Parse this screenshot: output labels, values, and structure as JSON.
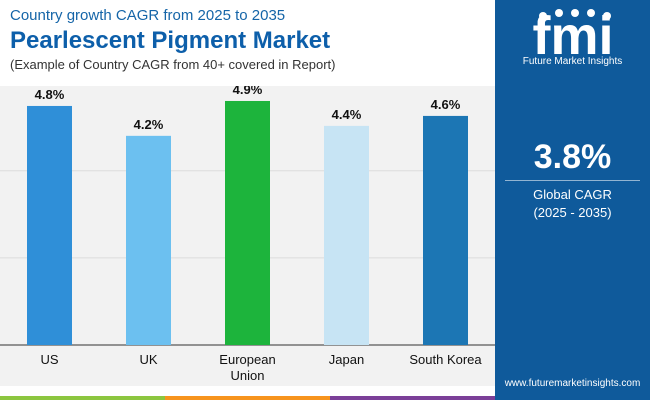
{
  "header": {
    "top_line": "Country growth CAGR from 2025 to 2035",
    "title": "Pearlescent Pigment Market",
    "note": "(Example of Country CAGR from 40+ covered in Report)"
  },
  "sidebar": {
    "logo_letters": "fmi",
    "logo_caption": "Future Market Insights",
    "cagr_value": "3.8%",
    "cagr_label": "Global CAGR",
    "cagr_period": "(2025 - 2035)",
    "website": "www.futuremarketinsights.com"
  },
  "colors": {
    "title_blue": "#0d5faa",
    "sidebar_blue": "#0f5a9b",
    "plot_background": "#f2f2f2",
    "bottom_strip": [
      "#8cc63f",
      "#f7941d",
      "#7b3f98"
    ]
  },
  "chart_data": {
    "type": "bar",
    "categories": [
      "US",
      "UK",
      "European Union",
      "Japan",
      "South Korea"
    ],
    "category_label_lines": [
      [
        "US"
      ],
      [
        "UK"
      ],
      [
        "European",
        "Union"
      ],
      [
        "Japan"
      ],
      [
        "South Korea"
      ]
    ],
    "values": [
      4.8,
      4.2,
      4.9,
      4.4,
      4.6
    ],
    "value_labels": [
      "4.8%",
      "4.2%",
      "4.9%",
      "4.4%",
      "4.6%"
    ],
    "bar_colors": [
      "#2f8fd8",
      "#6cc0f0",
      "#1db43c",
      "#c7e4f4",
      "#1c76b4"
    ],
    "ylim": [
      0,
      5
    ],
    "grid": true,
    "legend": "none"
  }
}
